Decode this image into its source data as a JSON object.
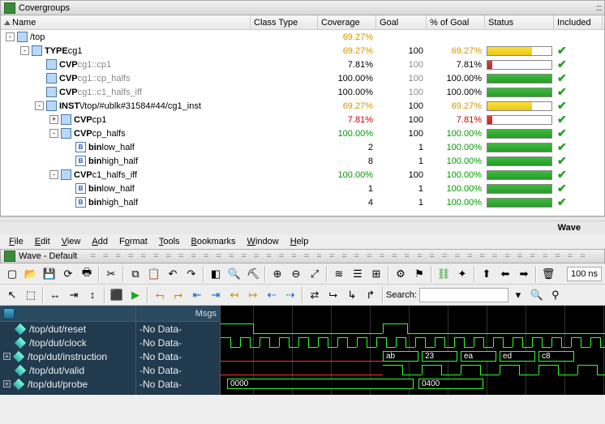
{
  "covergroups": {
    "title": "Covergroups",
    "columns": [
      "Name",
      "Class Type",
      "Coverage",
      "Goal",
      "% of Goal",
      "Status",
      "Included"
    ],
    "rows": [
      {
        "indent": 0,
        "toggle": "-",
        "icon": "inst",
        "label": "/top",
        "coverage": "69.27%",
        "covColor": "val-yellow",
        "goal": "",
        "pct": "",
        "barColor": "",
        "barPct": 0,
        "check": false
      },
      {
        "indent": 1,
        "toggle": "-",
        "icon": "inst",
        "kw": "TYPE",
        "label": "cg1",
        "coverage": "69.27%",
        "covColor": "val-yellow",
        "goal": "100",
        "pct": "69.27%",
        "pctColor": "val-yellow",
        "barColor": "bar-yellow",
        "barPct": 69,
        "check": true
      },
      {
        "indent": 2,
        "toggle": "",
        "icon": "cvp",
        "kw": "CVP",
        "label": "cg1::cp1",
        "dim": true,
        "coverage": "7.81%",
        "covColor": "val-black",
        "goal": "100",
        "goalDim": true,
        "pct": "7.81%",
        "pctColor": "val-black",
        "barColor": "bar-red",
        "barPct": 8,
        "check": true
      },
      {
        "indent": 2,
        "toggle": "",
        "icon": "cvp",
        "kw": "CVP",
        "label": "cg1::cp_halfs",
        "dim": true,
        "coverage": "100.00%",
        "covColor": "val-black",
        "goal": "100",
        "goalDim": true,
        "pct": "100.00%",
        "pctColor": "val-black",
        "barColor": "bar-green",
        "barPct": 100,
        "check": true
      },
      {
        "indent": 2,
        "toggle": "",
        "icon": "cvp",
        "kw": "CVP",
        "label": "cg1::c1_halfs_iff",
        "dim": true,
        "coverage": "100.00%",
        "covColor": "val-black",
        "goal": "100",
        "goalDim": true,
        "pct": "100.00%",
        "pctColor": "val-black",
        "barColor": "bar-green",
        "barPct": 100,
        "check": true
      },
      {
        "indent": 2,
        "toggle": "-",
        "icon": "inst",
        "kw": "INST",
        "label": "\\/top/#ublk#31584#44/cg1_inst",
        "coverage": "69.27%",
        "covColor": "val-yellow",
        "goal": "100",
        "pct": "69.27%",
        "pctColor": "val-yellow",
        "barColor": "bar-yellow",
        "barPct": 69,
        "check": true
      },
      {
        "indent": 3,
        "toggle": "+",
        "icon": "cvp",
        "kw": "CVP",
        "label": "cp1",
        "coverage": "7.81%",
        "covColor": "val-red",
        "goal": "100",
        "pct": "7.81%",
        "pctColor": "val-red",
        "barColor": "bar-red",
        "barPct": 8,
        "check": true
      },
      {
        "indent": 3,
        "toggle": "-",
        "icon": "cvp",
        "kw": "CVP",
        "label": "cp_halfs",
        "coverage": "100.00%",
        "covColor": "val-green",
        "goal": "100",
        "pct": "100.00%",
        "pctColor": "val-green",
        "barColor": "bar-green",
        "barPct": 100,
        "check": true
      },
      {
        "indent": 4,
        "toggle": "",
        "icon": "bin",
        "kw": "bin",
        "label": "low_half",
        "coverage": "2",
        "covColor": "val-black",
        "goal": "1",
        "pct": "100.00%",
        "pctColor": "val-green",
        "barColor": "bar-green",
        "barPct": 100,
        "check": true
      },
      {
        "indent": 4,
        "toggle": "",
        "icon": "bin",
        "kw": "bin",
        "label": "high_half",
        "coverage": "8",
        "covColor": "val-black",
        "goal": "1",
        "pct": "100.00%",
        "pctColor": "val-green",
        "barColor": "bar-green",
        "barPct": 100,
        "check": true
      },
      {
        "indent": 3,
        "toggle": "-",
        "icon": "cvp",
        "kw": "CVP",
        "label": "c1_halfs_iff",
        "coverage": "100.00%",
        "covColor": "val-green",
        "goal": "100",
        "pct": "100.00%",
        "pctColor": "val-green",
        "barColor": "bar-green",
        "barPct": 100,
        "check": true
      },
      {
        "indent": 4,
        "toggle": "",
        "icon": "bin",
        "kw": "bin",
        "label": "low_half",
        "coverage": "1",
        "covColor": "val-black",
        "goal": "1",
        "pct": "100.00%",
        "pctColor": "val-green",
        "barColor": "bar-green",
        "barPct": 100,
        "check": true
      },
      {
        "indent": 4,
        "toggle": "",
        "icon": "bin",
        "kw": "bin",
        "label": "high_half",
        "coverage": "4",
        "covColor": "val-black",
        "goal": "1",
        "pct": "100.00%",
        "pctColor": "val-green",
        "barColor": "bar-green",
        "barPct": 100,
        "check": true
      }
    ]
  },
  "wave": {
    "label": "Wave",
    "menus": [
      "File",
      "Edit",
      "View",
      "Add",
      "Format",
      "Tools",
      "Bookmarks",
      "Window",
      "Help"
    ],
    "title": "Wave - Default",
    "searchLabel": "Search:",
    "timescale": "100  ns",
    "msgsHeader": "Msgs",
    "signals": [
      {
        "name": "/top/dut/reset",
        "msg": "-No Data-",
        "expand": ""
      },
      {
        "name": "/top/dut/clock",
        "msg": "-No Data-",
        "expand": ""
      },
      {
        "name": "/top/dut/instruction",
        "msg": "-No Data-",
        "expand": "+"
      },
      {
        "name": "/top/dut/valid",
        "msg": "-No Data-",
        "expand": ""
      },
      {
        "name": "/top/dut/probe",
        "msg": "-No Data-",
        "expand": "+"
      }
    ],
    "busValues": {
      "instruction": [
        "ab",
        "23",
        "ea",
        "ed",
        "c8"
      ],
      "probe": [
        "0000",
        "0400"
      ]
    },
    "colors": {
      "waveGreen": "#30ff30",
      "waveRed": "#ff3030",
      "bg": "#000000",
      "sigBg": "#213a4d"
    }
  }
}
